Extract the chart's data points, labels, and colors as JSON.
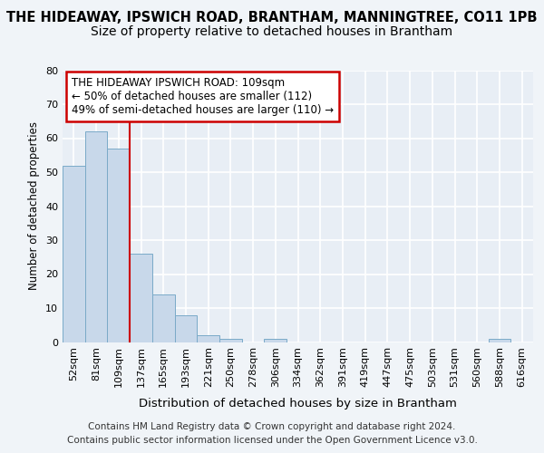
{
  "title": "THE HIDEAWAY, IPSWICH ROAD, BRANTHAM, MANNINGTREE, CO11 1PB",
  "subtitle": "Size of property relative to detached houses in Brantham",
  "xlabel": "Distribution of detached houses by size in Brantham",
  "ylabel": "Number of detached properties",
  "categories": [
    "52sqm",
    "81sqm",
    "109sqm",
    "137sqm",
    "165sqm",
    "193sqm",
    "221sqm",
    "250sqm",
    "278sqm",
    "306sqm",
    "334sqm",
    "362sqm",
    "391sqm",
    "419sqm",
    "447sqm",
    "475sqm",
    "503sqm",
    "531sqm",
    "560sqm",
    "588sqm",
    "616sqm"
  ],
  "values": [
    52,
    62,
    57,
    26,
    14,
    8,
    2,
    1,
    0,
    1,
    0,
    0,
    0,
    0,
    0,
    0,
    0,
    0,
    0,
    1,
    0
  ],
  "bar_color": "#c8d8ea",
  "bar_edge_color": "#7aaac8",
  "highlight_index": 2,
  "highlight_line_color": "#cc0000",
  "annotation_text": "THE HIDEAWAY IPSWICH ROAD: 109sqm\n← 50% of detached houses are smaller (112)\n49% of semi-detached houses are larger (110) →",
  "annotation_box_color": "#ffffff",
  "annotation_box_edge_color": "#cc0000",
  "ylim": [
    0,
    80
  ],
  "yticks": [
    0,
    10,
    20,
    30,
    40,
    50,
    60,
    70,
    80
  ],
  "footer_line1": "Contains HM Land Registry data © Crown copyright and database right 2024.",
  "footer_line2": "Contains public sector information licensed under the Open Government Licence v3.0.",
  "bg_color": "#f0f4f8",
  "plot_bg_color": "#e8eef5",
  "grid_color": "#ffffff",
  "title_fontsize": 10.5,
  "subtitle_fontsize": 10,
  "xlabel_fontsize": 9.5,
  "ylabel_fontsize": 8.5,
  "tick_fontsize": 8,
  "annotation_fontsize": 8.5,
  "footer_fontsize": 7.5
}
